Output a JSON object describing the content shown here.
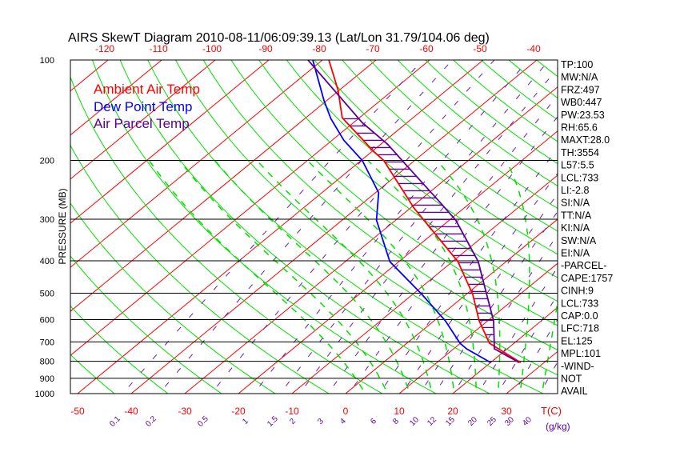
{
  "chart_data": {
    "type": "line",
    "title": "AIRS SkewT Diagram 2010-08-11/06:09:39.13 (Lat/Lon 31.79/104.06 deg)",
    "ylabel": "PRESSURE (MB)",
    "xlabel": "T(C)",
    "mixing_ratio_unit": "(g/kg)",
    "ylim": [
      1000,
      100
    ],
    "pressure_ticks": [
      100,
      200,
      300,
      400,
      500,
      600,
      700,
      800,
      900,
      1000
    ],
    "bottom_temp_ticks": [
      -50,
      -40,
      -30,
      -20,
      -10,
      0,
      10,
      20,
      30
    ],
    "top_temp_ticks": [
      -120,
      -110,
      -100,
      -90,
      -80,
      -70,
      -60,
      -50,
      -40
    ],
    "mixing_ratio_ticks": [
      "0.1",
      "0.2",
      "0.5",
      "1",
      "1.5",
      "2",
      "3",
      "4",
      "6",
      "8",
      "10",
      "12",
      "15",
      "20",
      "25",
      "30",
      "40"
    ],
    "legend": [
      {
        "name": "Ambient Air Temp",
        "color": "#ff0000"
      },
      {
        "name": "Dew Point Temp",
        "color": "#0000ff"
      },
      {
        "name": "Air Parcel Temp",
        "color": "#5a0096"
      }
    ],
    "series": [
      {
        "name": "Ambient Air Temp",
        "color": "#ff0000",
        "p": [
          100,
          123,
          149,
          188,
          200,
          278,
          402,
          504,
          605,
          706,
          806
        ],
        "t": [
          -78.8,
          -70.3,
          -63.2,
          -49.7,
          -45.8,
          -29.3,
          -9.0,
          1.2,
          8.4,
          15.4,
          25.5
        ]
      },
      {
        "name": "Dew Point Temp",
        "color": "#0000ff",
        "p": [
          100,
          132,
          150,
          174,
          200,
          250,
          302,
          402,
          504,
          605,
          706,
          734,
          806
        ],
        "t": [
          -81.8,
          -70.6,
          -65.1,
          -57.8,
          -49.8,
          -39.4,
          -33.6,
          -21.7,
          -8.3,
          2.1,
          9.9,
          12.4,
          19.9
        ]
      },
      {
        "name": "Air Parcel Temp",
        "color": "#5a0096",
        "p": [
          100,
          154,
          179,
          211,
          266,
          302,
          402,
          504,
          605,
          734,
          806
        ],
        "t": [
          -82.7,
          -58.4,
          -48.7,
          -39.3,
          -26.0,
          -18.8,
          -5.2,
          3.8,
          11.1,
          17.6,
          25.2
        ]
      }
    ],
    "cape_hatch_range_mb": [
      150,
      735
    ],
    "grid": true
  },
  "stats": [
    "TP:100",
    "MW:N/A",
    "FRZ:497",
    "WB0:447",
    "PW:23.53",
    "RH:65.6",
    "MAXT:28.0",
    "TH:3554",
    "L57:5.5",
    "LCL:733",
    "LI:-2.8",
    "SI:N/A",
    "TT:N/A",
    "KI:N/A",
    "SW:N/A",
    "EI:N/A",
    "-PARCEL-",
    "CAPE:1757",
    "CINH:9",
    "LCL:733",
    "CAP:0.0",
    "LFC:718",
    "EL:125",
    "MPL:101",
    "-WIND-",
    "NOT",
    "AVAIL"
  ]
}
